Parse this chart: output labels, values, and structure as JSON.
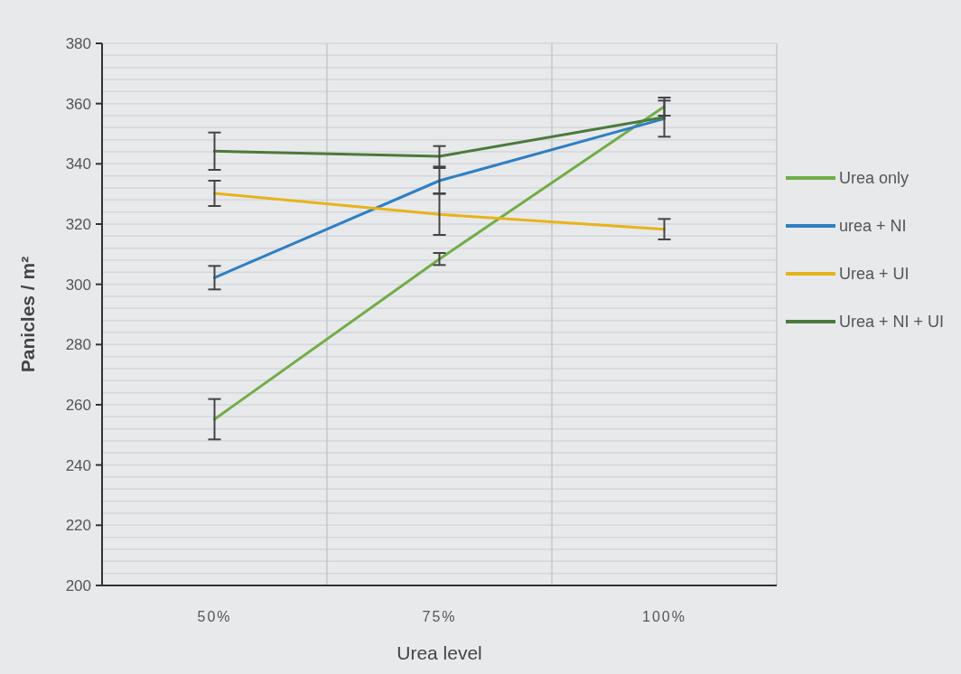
{
  "chart_data": {
    "type": "line",
    "xlabel": "Urea level",
    "ylabel": "Panicles / m²",
    "categories": [
      "50%",
      "75%",
      "100%"
    ],
    "series": [
      {
        "name": "Urea only",
        "color": "#70ad47",
        "values": [
          255.2,
          308.4,
          359
        ],
        "errors": [
          6.7,
          2,
          3
        ]
      },
      {
        "name": "urea + NI",
        "color": "#2e7fc4",
        "values": [
          302.2,
          334.4,
          355
        ],
        "errors": [
          3.9,
          4.2,
          6
        ]
      },
      {
        "name": "Urea + UI",
        "color": "#e8b31a",
        "values": [
          330.2,
          323.2,
          318.3
        ],
        "errors": [
          4.2,
          6.8,
          3.4
        ]
      },
      {
        "name": "Urea + NI + UI",
        "color": "#4b7a3c",
        "values": [
          344.2,
          342.5,
          355.5
        ],
        "errors": [
          6.2,
          3.4,
          null
        ]
      }
    ],
    "ylim": [
      200,
      380
    ],
    "yticks": [
      200,
      {
        "value": 204,
        "label": null
      },
      {
        "value": 208,
        "label": null
      },
      {
        "value": 212,
        "label": null
      },
      {
        "value": 216,
        "label": null
      },
      220,
      {
        "value": 224,
        "label": null
      },
      {
        "value": 228,
        "label": null
      },
      {
        "value": 232,
        "label": null
      },
      {
        "value": 236,
        "label": null
      },
      240,
      {
        "value": 244,
        "label": null
      },
      {
        "value": 248,
        "label": null
      },
      {
        "value": 252,
        "label": null
      },
      {
        "value": 256,
        "label": null
      },
      260,
      {
        "value": 264,
        "label": null
      },
      {
        "value": 268,
        "label": null
      },
      {
        "value": 272,
        "label": null
      },
      {
        "value": 276,
        "label": null
      },
      280,
      {
        "value": 284,
        "label": null
      },
      {
        "value": 288,
        "label": null
      },
      {
        "value": 292,
        "label": null
      },
      {
        "value": 296,
        "label": null
      },
      300,
      {
        "value": 304,
        "label": null
      },
      {
        "value": 308,
        "label": null
      },
      {
        "value": 312,
        "label": null
      },
      {
        "value": 316,
        "label": null
      },
      320,
      {
        "value": 324,
        "label": null
      },
      {
        "value": 328,
        "label": null
      },
      {
        "value": 332,
        "label": null
      },
      {
        "value": 336,
        "label": null
      },
      340,
      {
        "value": 344,
        "label": null
      },
      {
        "value": 348,
        "label": null
      },
      {
        "value": 352,
        "label": null
      },
      {
        "value": 356,
        "label": null
      },
      360,
      {
        "value": 364,
        "label": null
      },
      {
        "value": 368,
        "label": null
      },
      {
        "value": 372,
        "label": null
      },
      {
        "value": 376,
        "label": null
      },
      380
    ],
    "grid": true,
    "legend": "right",
    "marker": "none",
    "line_style": "solid"
  }
}
